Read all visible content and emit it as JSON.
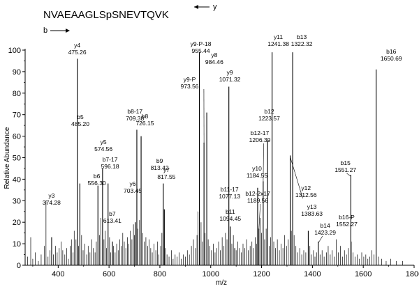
{
  "chart_data": {
    "type": "bar",
    "peptide_sequence": "NVAEAAGLSpSNEVTQVK",
    "ion_direction_labels": {
      "y": "y",
      "b": "b"
    },
    "xlabel": "m/z",
    "ylabel": "Relative Abundance",
    "xlim": [
      270,
      1800
    ],
    "ylim": [
      0,
      100
    ],
    "x_ticks": [
      400,
      600,
      800,
      1000,
      1200,
      1400,
      1600,
      1800
    ],
    "y_ticks": [
      0,
      10,
      20,
      30,
      40,
      50,
      60,
      70,
      80,
      90,
      100
    ],
    "labeled_peaks": [
      {
        "label": "y3",
        "mz": 374.28,
        "intensity": 13
      },
      {
        "label": "y4",
        "mz": 475.26,
        "intensity": 96
      },
      {
        "label": "b5",
        "mz": 485.2,
        "intensity": 38
      },
      {
        "label": "b6",
        "mz": 556.3,
        "intensity": 37
      },
      {
        "label": "y5",
        "mz": 574.56,
        "intensity": 45
      },
      {
        "label": "b7-17",
        "mz": 596.18,
        "intensity": 38
      },
      {
        "label": "b7",
        "mz": 613.41,
        "intensity": 11
      },
      {
        "label": "y6",
        "mz": 703.45,
        "intensity": 20
      },
      {
        "label": "b8-17",
        "mz": 709.38,
        "intensity": 63
      },
      {
        "label": "b8",
        "mz": 726.15,
        "intensity": 60
      },
      {
        "label": "b9",
        "mz": 813.42,
        "intensity": 38
      },
      {
        "label": "y7",
        "mz": 817.55,
        "intensity": 26
      },
      {
        "label": "y9-P-18",
        "mz": 955.44,
        "intensity": 99
      },
      {
        "label": "y9-P",
        "mz": 973.56,
        "intensity": 57
      },
      {
        "label": "y8",
        "mz": 984.46,
        "intensity": 71
      },
      {
        "label": "y9",
        "mz": 1071.32,
        "intensity": 83
      },
      {
        "label": "b11-17",
        "mz": 1077.13,
        "intensity": 18
      },
      {
        "label": "b11",
        "mz": 1094.45,
        "intensity": 8
      },
      {
        "label": "y10",
        "mz": 1184.55,
        "intensity": 36
      },
      {
        "label": "b12-2x17",
        "mz": 1189.56,
        "intensity": 17
      },
      {
        "label": "b12-17",
        "mz": 1206.39,
        "intensity": 39
      },
      {
        "label": "b12",
        "mz": 1223.57,
        "intensity": 58
      },
      {
        "label": "y11",
        "mz": 1241.38,
        "intensity": 99
      },
      {
        "label": "y12",
        "mz": 1312.56,
        "intensity": 51
      },
      {
        "label": "b13",
        "mz": 1322.32,
        "intensity": 99
      },
      {
        "label": "y13",
        "mz": 1383.63,
        "intensity": 16
      },
      {
        "label": "b14",
        "mz": 1423.29,
        "intensity": 11
      },
      {
        "label": "b15",
        "mz": 1551.27,
        "intensity": 42
      },
      {
        "label": "b16-P",
        "mz": 1552.27,
        "intensity": 11
      },
      {
        "label": "b16",
        "mz": 1650.69,
        "intensity": 91
      }
    ],
    "minor_peaks": [
      {
        "mz": 280,
        "intensity": 4
      },
      {
        "mz": 292,
        "intensity": 13
      },
      {
        "mz": 300,
        "intensity": 3
      },
      {
        "mz": 310,
        "intensity": 6
      },
      {
        "mz": 322,
        "intensity": 2
      },
      {
        "mz": 333,
        "intensity": 5
      },
      {
        "mz": 345,
        "intensity": 9
      },
      {
        "mz": 352,
        "intensity": 30
      },
      {
        "mz": 360,
        "intensity": 4
      },
      {
        "mz": 368,
        "intensity": 7
      },
      {
        "mz": 381,
        "intensity": 5
      },
      {
        "mz": 389,
        "intensity": 9
      },
      {
        "mz": 396,
        "intensity": 6
      },
      {
        "mz": 404,
        "intensity": 8
      },
      {
        "mz": 412,
        "intensity": 11
      },
      {
        "mz": 418,
        "intensity": 7
      },
      {
        "mz": 426,
        "intensity": 5
      },
      {
        "mz": 433,
        "intensity": 8
      },
      {
        "mz": 440,
        "intensity": 3
      },
      {
        "mz": 447,
        "intensity": 9
      },
      {
        "mz": 452,
        "intensity": 12
      },
      {
        "mz": 458,
        "intensity": 6
      },
      {
        "mz": 463,
        "intensity": 16
      },
      {
        "mz": 470,
        "intensity": 12
      },
      {
        "mz": 480,
        "intensity": 9
      },
      {
        "mz": 492,
        "intensity": 14
      },
      {
        "mz": 498,
        "intensity": 7
      },
      {
        "mz": 505,
        "intensity": 10
      },
      {
        "mz": 512,
        "intensity": 5
      },
      {
        "mz": 518,
        "intensity": 9
      },
      {
        "mz": 525,
        "intensity": 6
      },
      {
        "mz": 532,
        "intensity": 12
      },
      {
        "mz": 538,
        "intensity": 8
      },
      {
        "mz": 545,
        "intensity": 6
      },
      {
        "mz": 550,
        "intensity": 11
      },
      {
        "mz": 562,
        "intensity": 14
      },
      {
        "mz": 568,
        "intensity": 22
      },
      {
        "mz": 580,
        "intensity": 12
      },
      {
        "mz": 585,
        "intensity": 16
      },
      {
        "mz": 590,
        "intensity": 8
      },
      {
        "mz": 602,
        "intensity": 13
      },
      {
        "mz": 607,
        "intensity": 6
      },
      {
        "mz": 618,
        "intensity": 9
      },
      {
        "mz": 624,
        "intensity": 6
      },
      {
        "mz": 630,
        "intensity": 10
      },
      {
        "mz": 636,
        "intensity": 7
      },
      {
        "mz": 642,
        "intensity": 12
      },
      {
        "mz": 648,
        "intensity": 9
      },
      {
        "mz": 654,
        "intensity": 15
      },
      {
        "mz": 660,
        "intensity": 11
      },
      {
        "mz": 666,
        "intensity": 8
      },
      {
        "mz": 672,
        "intensity": 13
      },
      {
        "mz": 678,
        "intensity": 10
      },
      {
        "mz": 684,
        "intensity": 16
      },
      {
        "mz": 690,
        "intensity": 12
      },
      {
        "mz": 696,
        "intensity": 19
      },
      {
        "mz": 700,
        "intensity": 14
      },
      {
        "mz": 714,
        "intensity": 17
      },
      {
        "mz": 720,
        "intensity": 21
      },
      {
        "mz": 732,
        "intensity": 15
      },
      {
        "mz": 738,
        "intensity": 11
      },
      {
        "mz": 745,
        "intensity": 13
      },
      {
        "mz": 752,
        "intensity": 9
      },
      {
        "mz": 758,
        "intensity": 12
      },
      {
        "mz": 764,
        "intensity": 8
      },
      {
        "mz": 770,
        "intensity": 6
      },
      {
        "mz": 777,
        "intensity": 10
      },
      {
        "mz": 784,
        "intensity": 7
      },
      {
        "mz": 790,
        "intensity": 11
      },
      {
        "mz": 796,
        "intensity": 5
      },
      {
        "mz": 803,
        "intensity": 9
      },
      {
        "mz": 808,
        "intensity": 15
      },
      {
        "mz": 822,
        "intensity": 8
      },
      {
        "mz": 828,
        "intensity": 5
      },
      {
        "mz": 836,
        "intensity": 4
      },
      {
        "mz": 845,
        "intensity": 7
      },
      {
        "mz": 852,
        "intensity": 3
      },
      {
        "mz": 860,
        "intensity": 5
      },
      {
        "mz": 868,
        "intensity": 4
      },
      {
        "mz": 876,
        "intensity": 6
      },
      {
        "mz": 884,
        "intensity": 3
      },
      {
        "mz": 892,
        "intensity": 5
      },
      {
        "mz": 900,
        "intensity": 4
      },
      {
        "mz": 908,
        "intensity": 7
      },
      {
        "mz": 916,
        "intensity": 5
      },
      {
        "mz": 924,
        "intensity": 9
      },
      {
        "mz": 932,
        "intensity": 12
      },
      {
        "mz": 940,
        "intensity": 8
      },
      {
        "mz": 946,
        "intensity": 14
      },
      {
        "mz": 950,
        "intensity": 25
      },
      {
        "mz": 962,
        "intensity": 20
      },
      {
        "mz": 967,
        "intensity": 11
      },
      {
        "mz": 978,
        "intensity": 15
      },
      {
        "mz": 990,
        "intensity": 12
      },
      {
        "mz": 996,
        "intensity": 9
      },
      {
        "mz": 1003,
        "intensity": 7
      },
      {
        "mz": 1010,
        "intensity": 10
      },
      {
        "mz": 1017,
        "intensity": 6
      },
      {
        "mz": 1024,
        "intensity": 8
      },
      {
        "mz": 1031,
        "intensity": 11
      },
      {
        "mz": 1038,
        "intensity": 7
      },
      {
        "mz": 1045,
        "intensity": 13
      },
      {
        "mz": 1052,
        "intensity": 9
      },
      {
        "mz": 1058,
        "intensity": 15
      },
      {
        "mz": 1064,
        "intensity": 12
      },
      {
        "mz": 1083,
        "intensity": 10
      },
      {
        "mz": 1089,
        "intensity": 14
      },
      {
        "mz": 1100,
        "intensity": 7
      },
      {
        "mz": 1106,
        "intensity": 11
      },
      {
        "mz": 1113,
        "intensity": 8
      },
      {
        "mz": 1120,
        "intensity": 6
      },
      {
        "mz": 1127,
        "intensity": 10
      },
      {
        "mz": 1134,
        "intensity": 8
      },
      {
        "mz": 1141,
        "intensity": 12
      },
      {
        "mz": 1148,
        "intensity": 7
      },
      {
        "mz": 1155,
        "intensity": 9
      },
      {
        "mz": 1162,
        "intensity": 11
      },
      {
        "mz": 1168,
        "intensity": 8
      },
      {
        "mz": 1175,
        "intensity": 13
      },
      {
        "mz": 1180,
        "intensity": 10
      },
      {
        "mz": 1195,
        "intensity": 22
      },
      {
        "mz": 1200,
        "intensity": 15
      },
      {
        "mz": 1212,
        "intensity": 12
      },
      {
        "mz": 1218,
        "intensity": 17
      },
      {
        "mz": 1230,
        "intensity": 9
      },
      {
        "mz": 1236,
        "intensity": 13
      },
      {
        "mz": 1248,
        "intensity": 11
      },
      {
        "mz": 1255,
        "intensity": 8
      },
      {
        "mz": 1262,
        "intensity": 12
      },
      {
        "mz": 1270,
        "intensity": 7
      },
      {
        "mz": 1277,
        "intensity": 10
      },
      {
        "mz": 1284,
        "intensity": 8
      },
      {
        "mz": 1291,
        "intensity": 14
      },
      {
        "mz": 1298,
        "intensity": 9
      },
      {
        "mz": 1305,
        "intensity": 12
      },
      {
        "mz": 1317,
        "intensity": 16
      },
      {
        "mz": 1328,
        "intensity": 14
      },
      {
        "mz": 1335,
        "intensity": 9
      },
      {
        "mz": 1342,
        "intensity": 6
      },
      {
        "mz": 1350,
        "intensity": 8
      },
      {
        "mz": 1358,
        "intensity": 5
      },
      {
        "mz": 1366,
        "intensity": 7
      },
      {
        "mz": 1374,
        "intensity": 6
      },
      {
        "mz": 1390,
        "intensity": 9
      },
      {
        "mz": 1396,
        "intensity": 5
      },
      {
        "mz": 1404,
        "intensity": 7
      },
      {
        "mz": 1410,
        "intensity": 4
      },
      {
        "mz": 1416,
        "intensity": 6
      },
      {
        "mz": 1430,
        "intensity": 5
      },
      {
        "mz": 1438,
        "intensity": 7
      },
      {
        "mz": 1446,
        "intensity": 4
      },
      {
        "mz": 1455,
        "intensity": 6
      },
      {
        "mz": 1462,
        "intensity": 9
      },
      {
        "mz": 1470,
        "intensity": 5
      },
      {
        "mz": 1478,
        "intensity": 7
      },
      {
        "mz": 1486,
        "intensity": 4
      },
      {
        "mz": 1494,
        "intensity": 12
      },
      {
        "mz": 1502,
        "intensity": 6
      },
      {
        "mz": 1510,
        "intensity": 9
      },
      {
        "mz": 1518,
        "intensity": 4
      },
      {
        "mz": 1526,
        "intensity": 7
      },
      {
        "mz": 1534,
        "intensity": 5
      },
      {
        "mz": 1542,
        "intensity": 8
      },
      {
        "mz": 1560,
        "intensity": 6
      },
      {
        "mz": 1568,
        "intensity": 4
      },
      {
        "mz": 1576,
        "intensity": 5
      },
      {
        "mz": 1585,
        "intensity": 3
      },
      {
        "mz": 1594,
        "intensity": 6
      },
      {
        "mz": 1602,
        "intensity": 4
      },
      {
        "mz": 1610,
        "intensity": 5
      },
      {
        "mz": 1618,
        "intensity": 3
      },
      {
        "mz": 1626,
        "intensity": 4
      },
      {
        "mz": 1634,
        "intensity": 7
      },
      {
        "mz": 1642,
        "intensity": 5
      },
      {
        "mz": 1660,
        "intensity": 4
      },
      {
        "mz": 1672,
        "intensity": 3
      },
      {
        "mz": 1690,
        "intensity": 2
      },
      {
        "mz": 1708,
        "intensity": 3
      },
      {
        "mz": 1730,
        "intensity": 2
      },
      {
        "mz": 1755,
        "intensity": 2
      }
    ]
  }
}
